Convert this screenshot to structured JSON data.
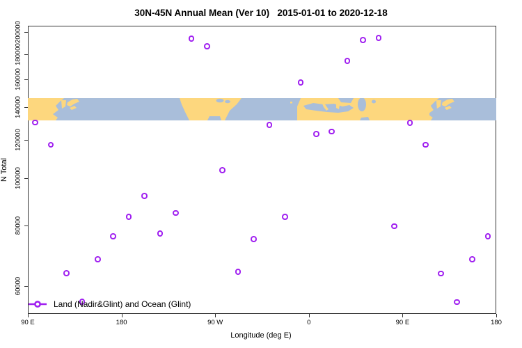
{
  "title": "30N-45N Annual Mean (Ver 10)   2015-01-01 to 2020-12-18",
  "axes": {
    "x": {
      "label": "Longitude (deg E)",
      "ticks": [
        {
          "offset_deg": 0,
          "label": "90 E"
        },
        {
          "offset_deg": 90,
          "label": "180"
        },
        {
          "offset_deg": 180,
          "label": "90 W"
        },
        {
          "offset_deg": 270,
          "label": "0"
        },
        {
          "offset_deg": 360,
          "label": "90 E"
        },
        {
          "offset_deg": 450,
          "label": "180"
        }
      ]
    },
    "y": {
      "label": "N Total",
      "scale": "log",
      "ticks": [
        {
          "value": 60000,
          "label": "60000"
        },
        {
          "value": 80000,
          "label": "80000"
        },
        {
          "value": 100000,
          "label": "100000"
        },
        {
          "value": 120000,
          "label": "120000"
        },
        {
          "value": 140000,
          "label": "140000"
        },
        {
          "value": 160000,
          "label": "160000"
        },
        {
          "value": 180000,
          "label": "180000"
        },
        {
          "value": 200000,
          "label": "200000"
        }
      ]
    }
  },
  "legend": {
    "label": "Land (Nadir&Glint) and Ocean (Glint)",
    "marker": "open-circle-on-line"
  },
  "colors": {
    "point": "#A020F0",
    "land": "#FDD77E",
    "ocean": "#A9BEDA",
    "axis": "#333333"
  },
  "chart_data": {
    "type": "scatter",
    "title": "30N-45N Annual Mean (Ver 10)   2015-01-01 to 2020-12-18",
    "xlabel": "Longitude (deg E)",
    "ylabel": "N Total",
    "y_scale": "log",
    "x_axis": {
      "start": "90 E",
      "span_deg": 450,
      "tick_labels": [
        "90 E",
        "180",
        "90 W",
        "0",
        "90 E",
        "180"
      ],
      "note": "longitude wraps eastward; first 90 deg of data repeated at end"
    },
    "ylim_ticks": [
      60000,
      200000
    ],
    "map_band": {
      "description": "30N-45N world coastline strip (land vs ocean)",
      "n_total_range": [
        131800,
        146500
      ]
    },
    "points": [
      {
        "lon": "97.5E",
        "offset_deg": 7.5,
        "n_total": 130000
      },
      {
        "lon": "112.5E",
        "offset_deg": 22.5,
        "n_total": 117000
      },
      {
        "lon": "127.5E",
        "offset_deg": 37.5,
        "n_total": 63700
      },
      {
        "lon": "142.5E",
        "offset_deg": 52.5,
        "n_total": 55600
      },
      {
        "lon": "157.5E",
        "offset_deg": 67.5,
        "n_total": 68000
      },
      {
        "lon": "172.5E",
        "offset_deg": 82.5,
        "n_total": 75800
      },
      {
        "lon": "172.5W",
        "offset_deg": 97.5,
        "n_total": 83200
      },
      {
        "lon": "157.5W",
        "offset_deg": 112.5,
        "n_total": 91800
      },
      {
        "lon": "142.5W",
        "offset_deg": 127.5,
        "n_total": 76900
      },
      {
        "lon": "127.5W",
        "offset_deg": 142.5,
        "n_total": 84700
      },
      {
        "lon": "112.5W",
        "offset_deg": 157.5,
        "n_total": 193200
      },
      {
        "lon": "97.5W",
        "offset_deg": 172.5,
        "n_total": 186500
      },
      {
        "lon": "82.5W",
        "offset_deg": 187.5,
        "n_total": 103800
      },
      {
        "lon": "67.5W",
        "offset_deg": 202.5,
        "n_total": 64100
      },
      {
        "lon": "52.5W",
        "offset_deg": 217.5,
        "n_total": 74900
      },
      {
        "lon": "37.5W",
        "offset_deg": 232.5,
        "n_total": 128600
      },
      {
        "lon": "22.5W",
        "offset_deg": 247.5,
        "n_total": 83200
      },
      {
        "lon": "7.5W",
        "offset_deg": 262.5,
        "n_total": 157200
      },
      {
        "lon": "7.5E",
        "offset_deg": 277.5,
        "n_total": 123000
      },
      {
        "lon": "22.5E",
        "offset_deg": 292.5,
        "n_total": 124600
      },
      {
        "lon": "37.5E",
        "offset_deg": 307.5,
        "n_total": 174000
      },
      {
        "lon": "52.5E",
        "offset_deg": 322.5,
        "n_total": 192200
      },
      {
        "lon": "67.5E",
        "offset_deg": 337.5,
        "n_total": 194100
      },
      {
        "lon": "82.5E",
        "offset_deg": 352.5,
        "n_total": 79500
      },
      {
        "lon": "97.5E",
        "offset_deg": 367.5,
        "n_total": 129800
      },
      {
        "lon": "112.5E",
        "offset_deg": 382.5,
        "n_total": 116900
      },
      {
        "lon": "127.5E",
        "offset_deg": 397.5,
        "n_total": 63600
      },
      {
        "lon": "142.5E",
        "offset_deg": 412.5,
        "n_total": 55500
      },
      {
        "lon": "157.5E",
        "offset_deg": 427.5,
        "n_total": 68000
      },
      {
        "lon": "172.5E",
        "offset_deg": 442.5,
        "n_total": 75800
      }
    ]
  }
}
